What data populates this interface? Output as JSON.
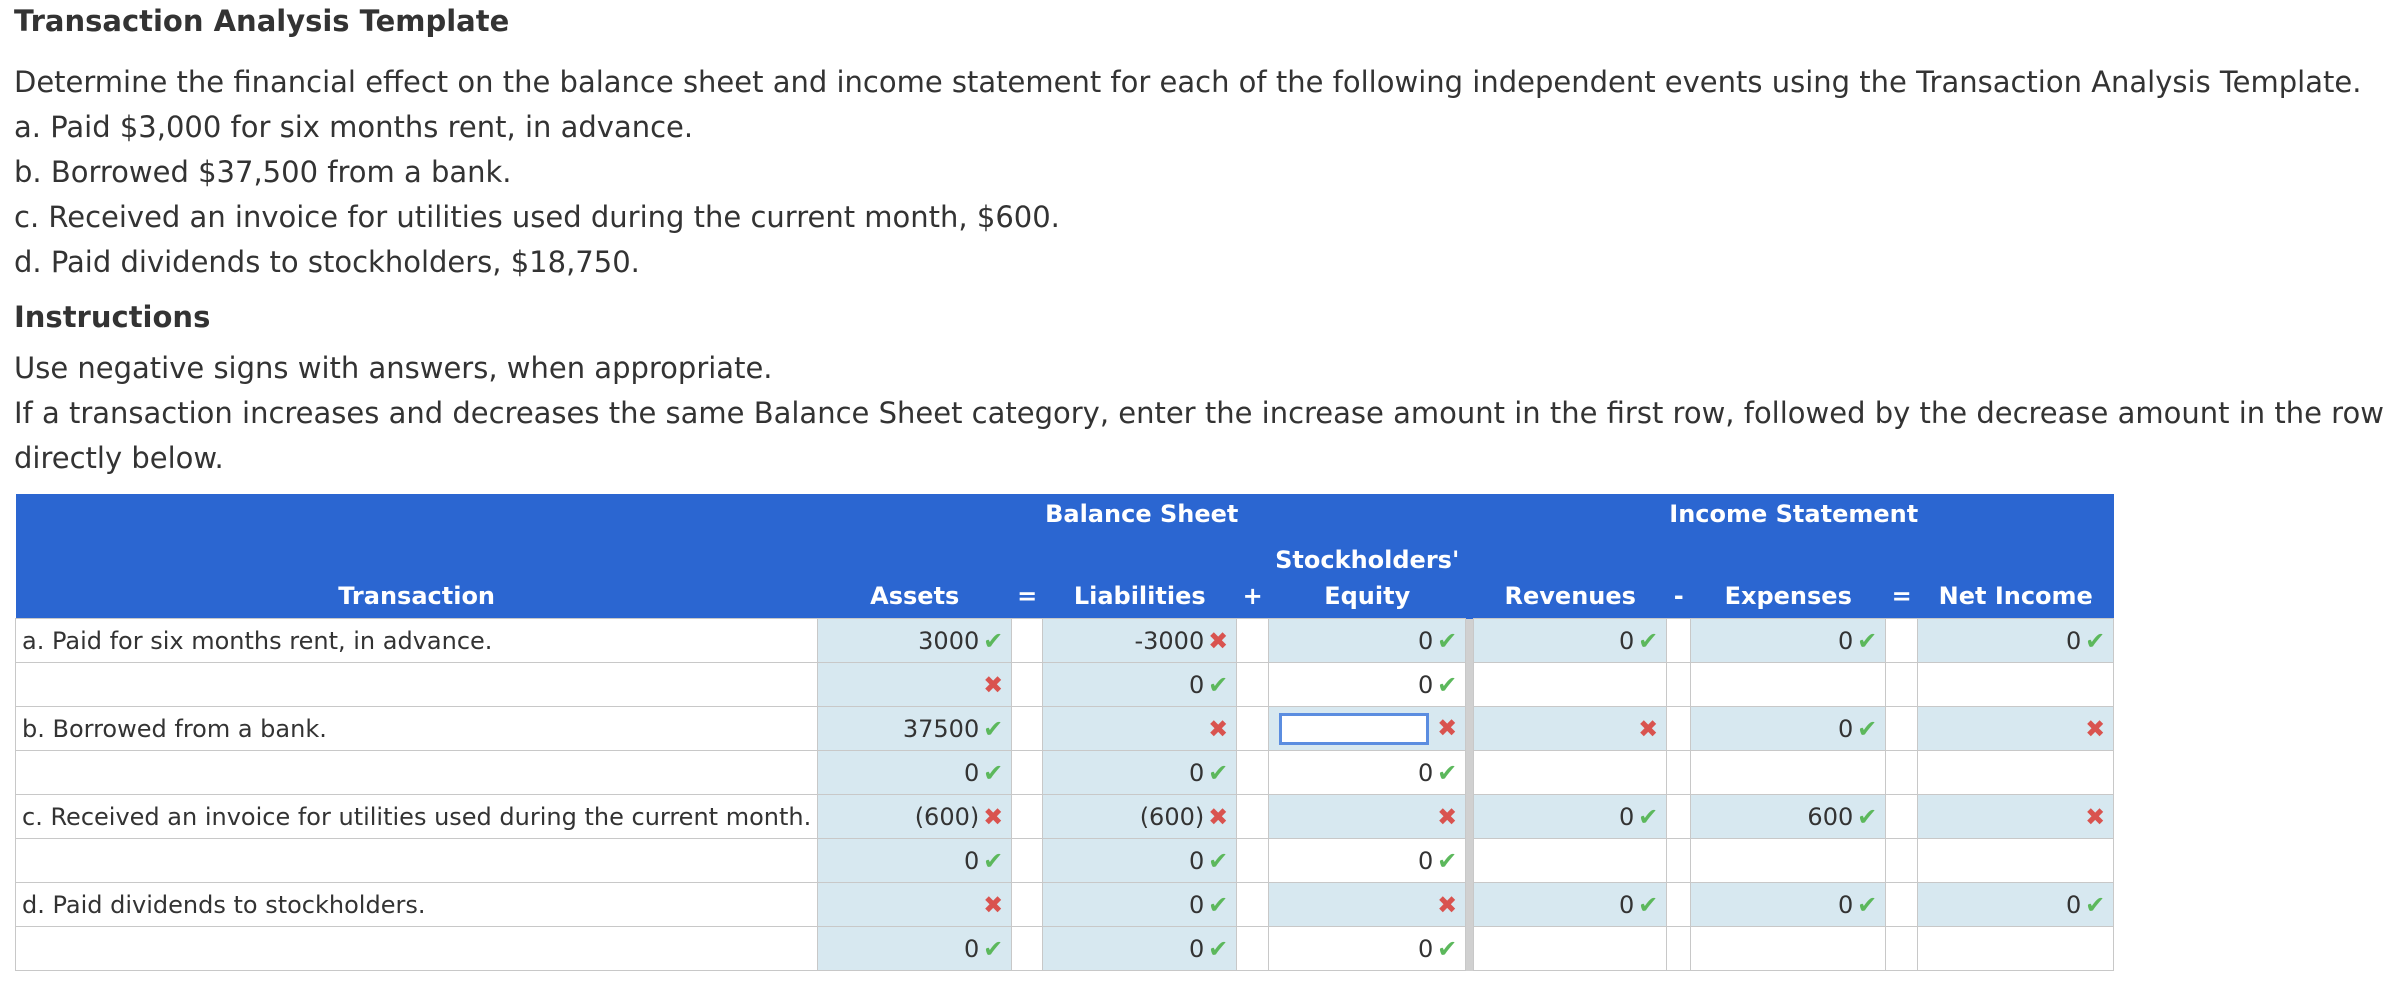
{
  "header": {
    "title": "Transaction Analysis Template"
  },
  "intro": "Determine the financial effect on the balance sheet and income statement for each of the following independent events using the Transaction Analysis Template.",
  "events": [
    "a. Paid $3,000 for six months rent, in advance.",
    "b. Borrowed $37,500 from a bank.",
    "c. Received an invoice for utilities used during the current month, $600.",
    "d. Paid dividends to stockholders, $18,750."
  ],
  "instructions": {
    "heading": "Instructions",
    "lines": [
      "Use negative signs with answers, when appropriate.",
      "If a transaction increases and decreases the same Balance Sheet category, enter the increase amount in the first row, followed by the decrease amount in the row directly below."
    ]
  },
  "table": {
    "groups": [
      "Balance Sheet",
      "Income Statement"
    ],
    "columns": [
      "Transaction",
      "Assets",
      "=",
      "Liabilities",
      "+",
      "Stockholders' Equity",
      "Revenues",
      "-",
      "Expenses",
      "=",
      "Net Income"
    ],
    "rows": [
      {
        "transaction": "a. Paid for six months rent, in advance.",
        "assets": "3000",
        "liabilities": "-3000",
        "equity": "0",
        "revenues": "0",
        "expenses": "0",
        "net_income": "0"
      },
      {
        "liabilities": "0",
        "equity": "0"
      },
      {
        "transaction": "b. Borrowed from a bank.",
        "assets": "37500",
        "expenses": "0"
      },
      {
        "assets": "0",
        "liabilities": "0",
        "equity": "0"
      },
      {
        "transaction": "c. Received an invoice for utilities used during the current month.",
        "assets": "(600)",
        "liabilities": "(600)",
        "revenues": "0",
        "expenses": "600"
      },
      {
        "assets": "0",
        "liabilities": "0",
        "equity": "0"
      },
      {
        "transaction": "d. Paid dividends to stockholders.",
        "liabilities": "0",
        "revenues": "0",
        "expenses": "0",
        "net_income": "0"
      },
      {
        "assets": "0",
        "liabilities": "0",
        "equity": "0"
      }
    ]
  }
}
